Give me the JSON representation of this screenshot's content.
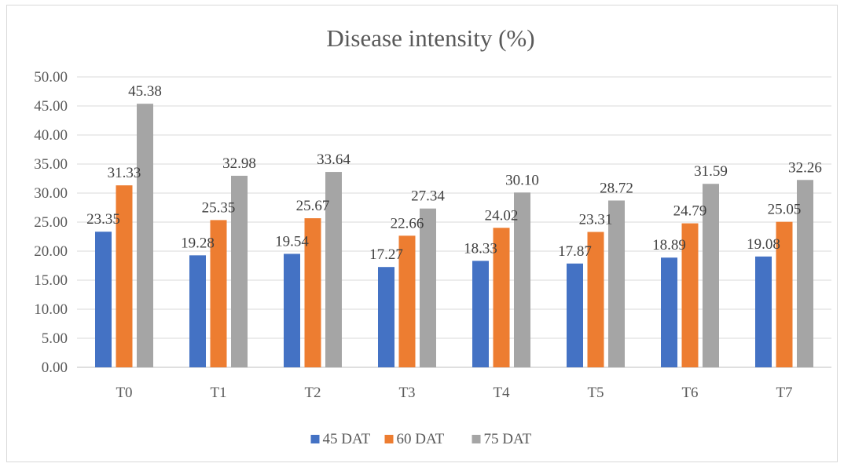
{
  "chart_data": {
    "type": "bar",
    "title": "Disease intensity (%)",
    "categories": [
      "T0",
      "T1",
      "T2",
      "T3",
      "T4",
      "T5",
      "T6",
      "T7"
    ],
    "series": [
      {
        "name": "45 DAT",
        "color": "#4472c4",
        "values": [
          23.35,
          19.28,
          19.54,
          17.27,
          18.33,
          17.87,
          18.89,
          19.08
        ],
        "labels": [
          "23.35",
          "19.28",
          "19.54",
          "17.27",
          "18.33",
          "17.87",
          "18.89",
          "19.08"
        ]
      },
      {
        "name": "60 DAT",
        "color": "#ed7d31",
        "values": [
          31.33,
          25.35,
          25.67,
          22.66,
          24.02,
          23.31,
          24.79,
          25.05
        ],
        "labels": [
          "31.33",
          "25.35",
          "25.67",
          "22.66",
          "24.02",
          "23.31",
          "24.79",
          "25.05"
        ]
      },
      {
        "name": "75 DAT",
        "color": "#a5a5a5",
        "values": [
          45.38,
          32.98,
          33.64,
          27.34,
          30.1,
          28.72,
          31.59,
          32.26
        ],
        "labels": [
          "45.38",
          "32.98",
          "33.64",
          "27.34",
          "30.10",
          "28.72",
          "31.59",
          "32.26"
        ]
      }
    ],
    "yticks": [
      "0.00",
      "5.00",
      "10.00",
      "15.00",
      "20.00",
      "25.00",
      "30.00",
      "35.00",
      "40.00",
      "45.00",
      "50.00"
    ],
    "ylim": [
      0,
      50
    ],
    "grid": true,
    "legend_position": "bottom"
  }
}
